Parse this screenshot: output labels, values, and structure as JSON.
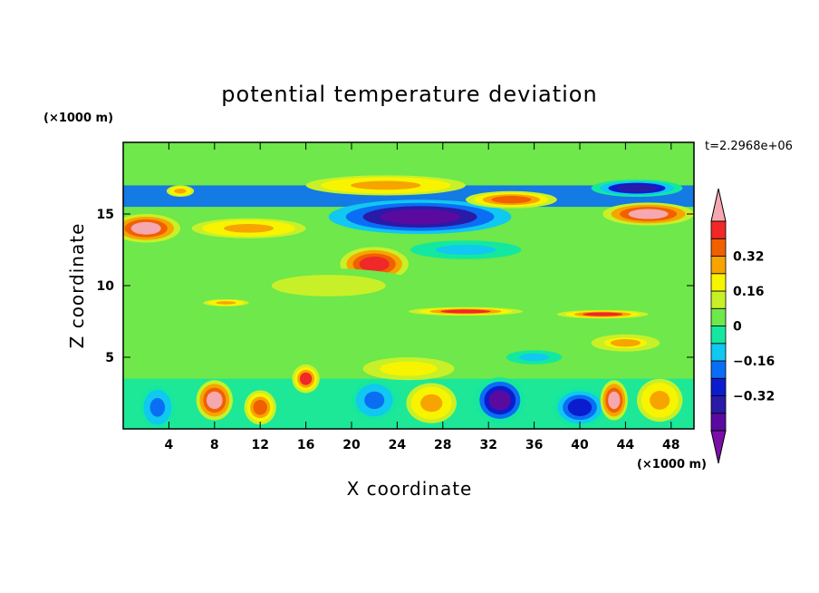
{
  "chart_data": {
    "type": "heatmap",
    "title": "potential temperature deviation",
    "xlabel": "X coordinate",
    "ylabel": "Z coordinate",
    "x_unit": "(×1000 m)",
    "y_unit": "(×1000 m)",
    "time_label": "t=2.2968e+06",
    "xlim": [
      0,
      50
    ],
    "ylim": [
      0,
      20
    ],
    "x_ticks": [
      4,
      8,
      12,
      16,
      20,
      24,
      28,
      32,
      36,
      40,
      44,
      48
    ],
    "y_ticks": [
      5,
      10,
      15
    ],
    "x_tick_labels": [
      "4",
      "8",
      "12",
      "16",
      "20",
      "24",
      "28",
      "32",
      "36",
      "40",
      "44",
      "48"
    ],
    "y_tick_labels": [
      "5",
      "10",
      "15"
    ],
    "colorbar": {
      "levels": [
        -0.48,
        -0.4,
        -0.32,
        -0.24,
        -0.16,
        -0.08,
        0,
        0.08,
        0.16,
        0.24,
        0.32,
        0.4,
        0.48
      ],
      "colors": [
        "#7a0fa8",
        "#5b0aa0",
        "#2a1aa8",
        "#0b1ccf",
        "#0a6ef5",
        "#10c8f0",
        "#14e8a0",
        "#6ee84a",
        "#c8f028",
        "#f8f400",
        "#f7a400",
        "#f06000",
        "#f02828",
        "#f5a8b0"
      ],
      "tick_values": [
        0.32,
        0.16,
        0,
        -0.16,
        -0.32
      ],
      "tick_labels": [
        "0.32",
        "0.16",
        "0",
        "−0.16",
        "−0.32"
      ],
      "extend": "both"
    },
    "background_value": 0.04,
    "features": [
      {
        "shape": "band",
        "x": [
          0,
          50
        ],
        "z": [
          0,
          3.5
        ],
        "value": -0.02
      },
      {
        "shape": "band",
        "x": [
          0,
          50
        ],
        "z": [
          15.5,
          17
        ],
        "value": -0.22
      },
      {
        "shape": "band",
        "x": [
          0,
          50
        ],
        "z": [
          17,
          20
        ],
        "value": 0.06
      },
      {
        "shape": "ellipse",
        "cx": 2,
        "cz": 14,
        "rx": 3,
        "rz": 1,
        "value": 0.48
      },
      {
        "shape": "ellipse",
        "cx": 11,
        "cz": 14,
        "rx": 5,
        "rz": 0.7,
        "value": 0.3
      },
      {
        "shape": "ellipse",
        "cx": 22,
        "cz": 11.5,
        "rx": 3,
        "rz": 1.2,
        "value": 0.45
      },
      {
        "shape": "ellipse",
        "cx": 26,
        "cz": 14.8,
        "rx": 8,
        "rz": 1.2,
        "value": -0.45
      },
      {
        "shape": "ellipse",
        "cx": 23,
        "cz": 17,
        "rx": 7,
        "rz": 0.7,
        "value": 0.3
      },
      {
        "shape": "ellipse",
        "cx": 34,
        "cz": 16,
        "rx": 4,
        "rz": 0.6,
        "value": 0.34
      },
      {
        "shape": "ellipse",
        "cx": 46,
        "cz": 15,
        "rx": 4,
        "rz": 0.8,
        "value": 0.48
      },
      {
        "shape": "ellipse",
        "cx": 45,
        "cz": 16.8,
        "rx": 4,
        "rz": 0.6,
        "value": -0.35
      },
      {
        "shape": "ellipse",
        "cx": 5,
        "cz": 16.6,
        "rx": 1.2,
        "rz": 0.4,
        "value": 0.3
      },
      {
        "shape": "ellipse",
        "cx": 30,
        "cz": 12.5,
        "rx": 6,
        "rz": 0.8,
        "value": -0.1
      },
      {
        "shape": "ellipse",
        "cx": 30,
        "cz": 8.2,
        "rx": 5,
        "rz": 0.3,
        "value": 0.4
      },
      {
        "shape": "ellipse",
        "cx": 42,
        "cz": 8,
        "rx": 4,
        "rz": 0.3,
        "value": 0.4
      },
      {
        "shape": "ellipse",
        "cx": 9,
        "cz": 8.8,
        "rx": 2,
        "rz": 0.25,
        "value": 0.3
      },
      {
        "shape": "ellipse",
        "cx": 18,
        "cz": 10,
        "rx": 8,
        "rz": 1.2,
        "value": 0.1
      },
      {
        "shape": "ellipse",
        "cx": 8,
        "cz": 2,
        "rx": 1.6,
        "rz": 1.4,
        "value": 0.48
      },
      {
        "shape": "ellipse",
        "cx": 16,
        "cz": 3.5,
        "rx": 1.2,
        "rz": 1,
        "value": 0.4
      },
      {
        "shape": "ellipse",
        "cx": 3,
        "cz": 1.5,
        "rx": 1.5,
        "rz": 1.5,
        "value": -0.2
      },
      {
        "shape": "ellipse",
        "cx": 12,
        "cz": 1.5,
        "rx": 1.4,
        "rz": 1.2,
        "value": 0.38
      },
      {
        "shape": "ellipse",
        "cx": 22,
        "cz": 2,
        "rx": 2,
        "rz": 1.4,
        "value": -0.2
      },
      {
        "shape": "ellipse",
        "cx": 27,
        "cz": 1.8,
        "rx": 2.2,
        "rz": 1.4,
        "value": 0.3
      },
      {
        "shape": "ellipse",
        "cx": 33,
        "cz": 2,
        "rx": 2.2,
        "rz": 1.6,
        "value": -0.42
      },
      {
        "shape": "ellipse",
        "cx": 40,
        "cz": 1.5,
        "rx": 2.4,
        "rz": 1.4,
        "value": -0.3
      },
      {
        "shape": "ellipse",
        "cx": 43,
        "cz": 2,
        "rx": 1.2,
        "rz": 1.4,
        "value": 0.48
      },
      {
        "shape": "ellipse",
        "cx": 47,
        "cz": 2,
        "rx": 2,
        "rz": 1.5,
        "value": 0.3
      },
      {
        "shape": "ellipse",
        "cx": 25,
        "cz": 4.2,
        "rx": 4,
        "rz": 0.8,
        "value": 0.2
      },
      {
        "shape": "ellipse",
        "cx": 36,
        "cz": 5,
        "rx": 3,
        "rz": 0.6,
        "value": -0.12
      },
      {
        "shape": "ellipse",
        "cx": 44,
        "cz": 6,
        "rx": 3,
        "rz": 0.6,
        "value": 0.25
      }
    ]
  }
}
